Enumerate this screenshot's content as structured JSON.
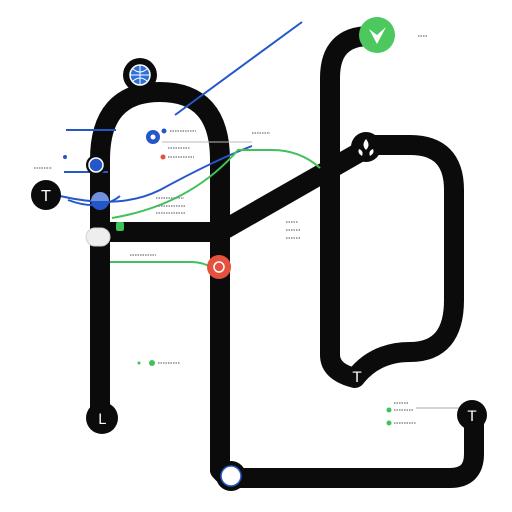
{
  "colors": {
    "track": "#0b0b0b",
    "blue": "#2457c9",
    "green": "#3fc25a",
    "red": "#e4523f",
    "light": "#f2f2f2",
    "text_gray": "#8a8a8a"
  },
  "nodes": [
    {
      "id": "t-left",
      "glyph": "T",
      "icon": "t-glyph-icon"
    },
    {
      "id": "l-bottom",
      "glyph": "L",
      "icon": "l-glyph-icon"
    },
    {
      "id": "t-right",
      "glyph": "T",
      "icon": "t-glyph-icon"
    },
    {
      "id": "t-mid",
      "glyph": "T",
      "icon": "t-glyph-icon"
    },
    {
      "id": "leaf",
      "glyph": "",
      "icon": "leaf-icon"
    },
    {
      "id": "arrow",
      "glyph": "",
      "icon": "arrow-icon"
    },
    {
      "id": "globe",
      "glyph": "",
      "icon": "globe-icon"
    },
    {
      "id": "red",
      "glyph": "",
      "icon": "red-dot-icon"
    },
    {
      "id": "bottom",
      "glyph": "",
      "icon": "capsule-icon"
    }
  ]
}
